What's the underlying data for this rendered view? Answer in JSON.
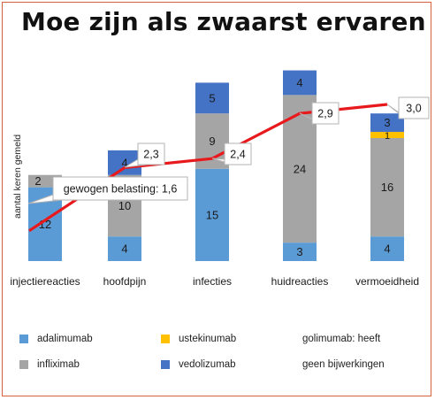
{
  "title": "Moe zijn als zwaarst ervaren",
  "chart_data": {
    "type": "bar",
    "stacked": true,
    "title": "Moe zijn als zwaarst ervaren",
    "ylabel": "aantal keren gemeld",
    "xlabel": "",
    "categories": [
      "injectiereacties",
      "hoofdpijn",
      "infecties",
      "huidreacties",
      "vermoeidheid"
    ],
    "series": [
      {
        "name": "adalimumab",
        "color": "#5b9bd5",
        "values": [
          12,
          4,
          15,
          3,
          4
        ]
      },
      {
        "name": "infliximab",
        "color": "#a5a5a5",
        "values": [
          2,
          10,
          9,
          24,
          16
        ]
      },
      {
        "name": "ustekinumab",
        "color": "#ffc000",
        "values": [
          0,
          0,
          0,
          0,
          1
        ]
      },
      {
        "name": "vedolizumab",
        "color": "#4472c4",
        "values": [
          0,
          4,
          5,
          4,
          3
        ]
      }
    ],
    "line": {
      "name": "gewogen belasting",
      "color": "#e8191c",
      "values": [
        1.6,
        2.3,
        2.4,
        2.9,
        3.0
      ],
      "labels": [
        "gewogen belasting: 1,6",
        "2,3",
        "2,4",
        "2,9",
        "3,0"
      ]
    },
    "grid": false,
    "legend_position": "bottom"
  },
  "legend": {
    "items": [
      {
        "label": "adalimumab",
        "color": "#5b9bd5"
      },
      {
        "label": "ustekinumab",
        "color": "#ffc000"
      },
      {
        "label": "infliximab",
        "color": "#a5a5a5"
      },
      {
        "label": "vedolizumab",
        "color": "#4472c4"
      }
    ],
    "note_line1": "golimumab: heeft",
    "note_line2": "geen bijwerkingen"
  }
}
